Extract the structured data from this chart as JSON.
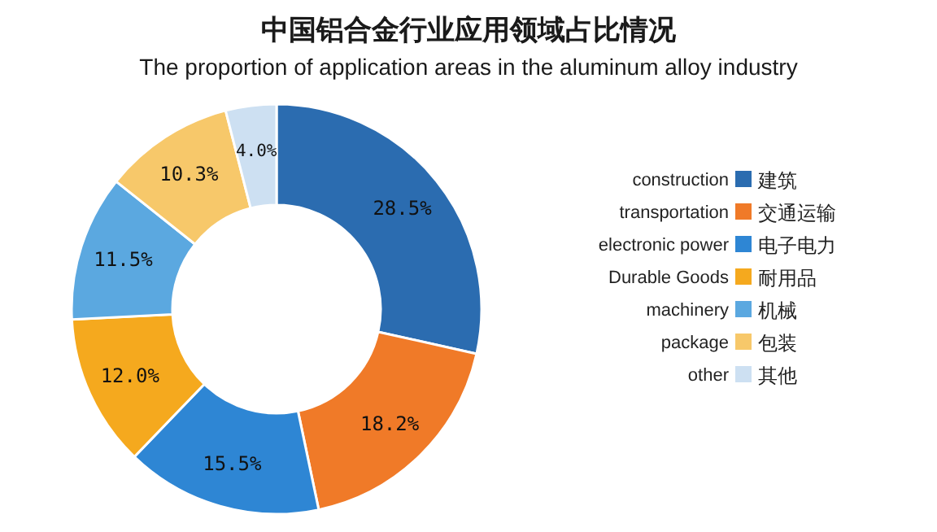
{
  "chart_data": {
    "type": "donut",
    "title": "中国铝合金行业应用领域占比情况",
    "subtitle": "The proportion of application areas in the aluminum alloy industry",
    "categories": [
      "建筑",
      "交通运输",
      "电子电力",
      "耐用品",
      "机械",
      "包装",
      "其他"
    ],
    "values": [
      28.5,
      18.2,
      15.5,
      12.0,
      11.5,
      10.3,
      4.0
    ],
    "value_labels": [
      "28.5%",
      "18.2%",
      "15.5%",
      "12.0%",
      "11.5%",
      "10.3%",
      "4.0%"
    ],
    "colors": [
      "#2b6cb0",
      "#f07a28",
      "#2e86d4",
      "#f5a91e",
      "#5ba8e0",
      "#f7c86a",
      "#cde0f2"
    ],
    "annotations": [
      "construction",
      "transportation",
      "electronic power",
      "Durable Goods",
      "machinery",
      "package",
      "other"
    ],
    "legend": "right"
  }
}
